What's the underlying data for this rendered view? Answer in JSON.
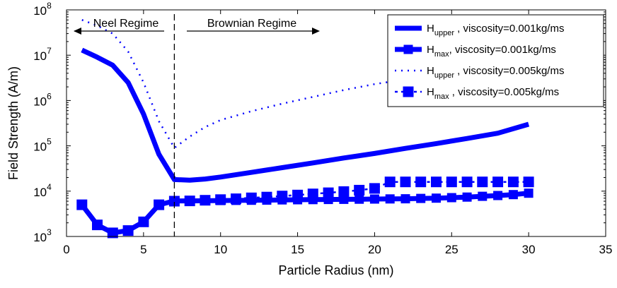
{
  "chart_data": {
    "type": "line",
    "title": "",
    "xlabel": "Particle Radius (nm)",
    "ylabel": "Field Strength (A/m)",
    "xlim": [
      0,
      35
    ],
    "ylim": [
      1000,
      100000000
    ],
    "yscale": "log",
    "grid": false,
    "legend_position": "top-right",
    "x_ticks": [
      "0",
      "5",
      "10",
      "15",
      "20",
      "25",
      "30",
      "35"
    ],
    "y_ticks": [
      {
        "base": "10",
        "exp": "3"
      },
      {
        "base": "10",
        "exp": "4"
      },
      {
        "base": "10",
        "exp": "5"
      },
      {
        "base": "10",
        "exp": "6"
      },
      {
        "base": "10",
        "exp": "7"
      },
      {
        "base": "10",
        "exp": "8"
      }
    ],
    "annotations": {
      "neel": "Neel Regime",
      "brownian": "Brownian Regime",
      "divider_x": 7
    },
    "series": [
      {
        "name_main": "H",
        "name_sub": "upper",
        "name_rest": " , viscosity=0.001kg/ms",
        "style": "solid-thick",
        "color": "#0000ff",
        "x": [
          1,
          2,
          3,
          4,
          5,
          6,
          7,
          8,
          9,
          10,
          12,
          14,
          16,
          18,
          20,
          22,
          24,
          26,
          28,
          30
        ],
        "values": [
          13000000,
          9000000,
          6000000,
          2500000,
          500000,
          65000,
          18000,
          17500,
          18500,
          20500,
          26000,
          33000,
          42000,
          54000,
          68000,
          88000,
          112000,
          145000,
          190000,
          300000
        ]
      },
      {
        "name_main": "H",
        "name_sub": "max",
        "name_rest": ", viscosity=0.001kg/ms",
        "style": "solid-square",
        "color": "#0000ff",
        "x": [
          1,
          2,
          3,
          4,
          5,
          6,
          7,
          8,
          9,
          10,
          11,
          12,
          13,
          14,
          15,
          16,
          17,
          18,
          19,
          20,
          21,
          22,
          23,
          24,
          25,
          26,
          27,
          28,
          29,
          30
        ],
        "values": [
          5000,
          1800,
          1200,
          1350,
          2100,
          5000,
          6100,
          6100,
          6150,
          6200,
          6250,
          6300,
          6350,
          6400,
          6450,
          6500,
          6550,
          6600,
          6650,
          6700,
          6750,
          6800,
          6900,
          7000,
          7200,
          7400,
          7700,
          8000,
          8400,
          9000
        ]
      },
      {
        "name_main": "H",
        "name_sub": "upper",
        "name_rest": " , viscosity=0.005kg/ms",
        "style": "dotted",
        "color": "#0000ff",
        "x": [
          1,
          2,
          3,
          4,
          5,
          6,
          7,
          8,
          9,
          10,
          12,
          14,
          16,
          18,
          20,
          21
        ],
        "values": [
          60000000,
          45000000,
          30000000,
          12000000,
          2500000,
          350000,
          90000,
          160000,
          260000,
          370000,
          580000,
          850000,
          1200000,
          1700000,
          2300000,
          2600000
        ]
      },
      {
        "name_main": "H",
        "name_sub": "max",
        "name_rest": " , viscosity=0.005kg/ms",
        "style": "dashed-square",
        "color": "#0000ff",
        "x": [
          1,
          2,
          3,
          4,
          5,
          6,
          7,
          8,
          9,
          10,
          11,
          12,
          13,
          14,
          15,
          16,
          17,
          18,
          19,
          20,
          21,
          22,
          23,
          24,
          25,
          26,
          27,
          28,
          29,
          30
        ],
        "values": [
          5000,
          1800,
          1200,
          1350,
          2100,
          5000,
          6000,
          6100,
          6300,
          6500,
          6800,
          7100,
          7400,
          7800,
          8200,
          8700,
          9200,
          9800,
          10500,
          11500,
          16000,
          16000,
          16000,
          16000,
          16000,
          16000,
          16000,
          16000,
          16000,
          16000
        ]
      }
    ]
  }
}
